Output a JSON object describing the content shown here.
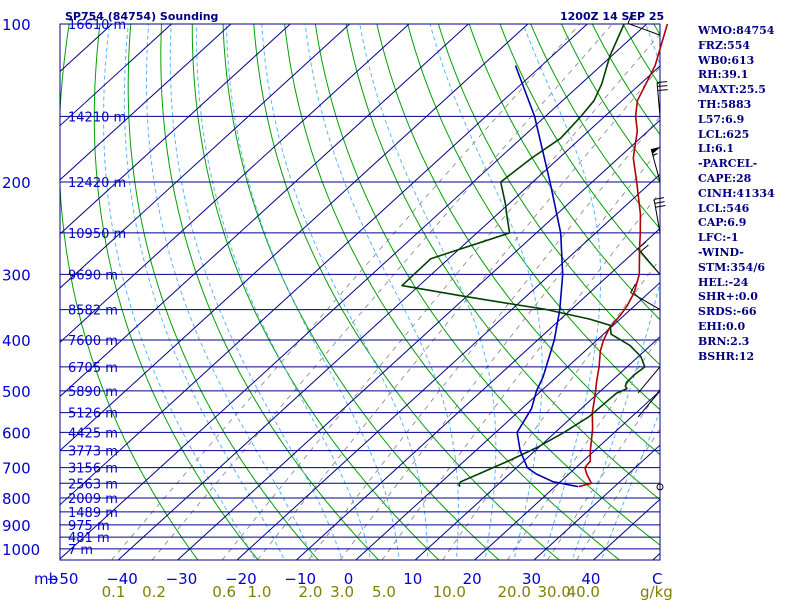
{
  "header": {
    "station": "SP754 (84754) Sounding",
    "datetime": "1200Z 14 SEP 25"
  },
  "indices": [
    "WMO:84754",
    "FRZ:554",
    "WB0:613",
    "RH:39.1",
    "MAXT:25.5",
    "TH:5883",
    "L57:6.9",
    "LCL:625",
    "LI:6.1",
    "-PARCEL-",
    "CAPE:28",
    "CINH:41334",
    "LCL:546",
    "CAP:6.9",
    "LFC:-1",
    "-WIND-",
    "STM:354/6",
    "HEL:-24",
    "SHR+:0.0",
    "SRDS:-66",
    "EHI:0.0",
    "BRN:2.3",
    "BSHR:12"
  ],
  "colors": {
    "isobar": "#00008b",
    "isotherm": "#00008b",
    "dry_adiabat": "#00a000",
    "moist_adiabat": "#5ab4ff",
    "mixing_ratio": "#808080",
    "temperature": "#b00000",
    "dewpoint": "#004000",
    "parcel": "#0000b0",
    "text_blue": "#0000cd",
    "mixing_label": "#808000"
  },
  "chart_data": {
    "type": "line",
    "subtype": "skew-t log-p",
    "xlabel": "",
    "ylabel": "mb",
    "pressure_labels": [
      "100",
      "200",
      "300",
      "400",
      "500",
      "600",
      "700",
      "800",
      "900",
      "1000"
    ],
    "heights": [
      {
        "p": 100,
        "label": "16610 m"
      },
      {
        "p": 150,
        "label": "14210 m"
      },
      {
        "p": 200,
        "label": "12420 m"
      },
      {
        "p": 250,
        "label": "10950 m"
      },
      {
        "p": 300,
        "label": "9690 m"
      },
      {
        "p": 350,
        "label": "8582 m"
      },
      {
        "p": 400,
        "label": "7600 m"
      },
      {
        "p": 450,
        "label": "6705 m"
      },
      {
        "p": 500,
        "label": "5890 m"
      },
      {
        "p": 550,
        "label": "5126 m"
      },
      {
        "p": 600,
        "label": "4425 m"
      },
      {
        "p": 650,
        "label": "3773 m"
      },
      {
        "p": 700,
        "label": "3156 m"
      },
      {
        "p": 750,
        "label": "2563 m"
      },
      {
        "p": 800,
        "label": "2009 m"
      },
      {
        "p": 850,
        "label": "1489 m"
      },
      {
        "p": 900,
        "label": "975 m"
      },
      {
        "p": 950,
        "label": "481 m"
      },
      {
        "p": 1000,
        "label": "7 m"
      }
    ],
    "temp_ticks": [
      -50,
      -40,
      -30,
      -20,
      -10,
      0,
      10,
      20,
      30,
      40
    ],
    "mixing_ratio_labels": [
      {
        "w": 0.1,
        "label": "0.1"
      },
      {
        "w": 0.2,
        "label": "0.2"
      },
      {
        "w": 0.6,
        "label": "0.6"
      },
      {
        "w": 1.0,
        "label": "1.0"
      },
      {
        "w": 2.0,
        "label": "2.0"
      },
      {
        "w": 3.0,
        "label": "3.0"
      },
      {
        "w": 5.0,
        "label": "5.0"
      },
      {
        "w": 10.0,
        "label": "10.0"
      },
      {
        "w": 20.0,
        "label": "20.0"
      },
      {
        "w": 30.0,
        "label": "30.0"
      },
      {
        "w": 40.0,
        "label": "40.0"
      }
    ],
    "mixing_unit": "g/kg",
    "temp_unit": "C",
    "ylim": [
      100,
      1000
    ],
    "series": [
      {
        "kind": "temperature",
        "points": [
          [
            761,
            24.0
          ],
          [
            750,
            25.5
          ],
          [
            720,
            23.0
          ],
          [
            700,
            21.5
          ],
          [
            680,
            21.2
          ],
          [
            650,
            19.3
          ],
          [
            620,
            17.5
          ],
          [
            590,
            15.6
          ],
          [
            550,
            12.6
          ],
          [
            510,
            9.9
          ],
          [
            480,
            7.6
          ],
          [
            450,
            5.3
          ],
          [
            420,
            2.6
          ],
          [
            400,
            1.1
          ],
          [
            380,
            -0.1
          ],
          [
            370,
            -0.4
          ],
          [
            360,
            -0.6
          ],
          [
            345,
            -1.2
          ],
          [
            325,
            -2.5
          ],
          [
            300,
            -5.0
          ],
          [
            270,
            -9.4
          ],
          [
            250,
            -12.5
          ],
          [
            230,
            -16.0
          ],
          [
            200,
            -22.5
          ],
          [
            180,
            -27.5
          ],
          [
            160,
            -31.8
          ],
          [
            150,
            -34.8
          ],
          [
            140,
            -37.4
          ],
          [
            120,
            -40.9
          ],
          [
            100,
            -46.5
          ]
        ]
      },
      {
        "kind": "dewpoint",
        "points": [
          [
            761,
            4.0
          ],
          [
            755,
            3.5
          ],
          [
            745,
            3.2
          ],
          [
            720,
            4.8
          ],
          [
            680,
            7.4
          ],
          [
            640,
            9.8
          ],
          [
            600,
            11.5
          ],
          [
            560,
            12.8
          ],
          [
            520,
            13.0
          ],
          [
            505,
            13.1
          ],
          [
            495,
            14.0
          ],
          [
            490,
            13.3
          ],
          [
            482,
            12.8
          ],
          [
            465,
            12.7
          ],
          [
            450,
            13.0
          ],
          [
            430,
            10.4
          ],
          [
            410,
            6.6
          ],
          [
            390,
            1.3
          ],
          [
            375,
            -0.5
          ],
          [
            365,
            -5.1
          ],
          [
            350,
            -14.1
          ],
          [
            330,
            -30.6
          ],
          [
            315,
            -42.9
          ],
          [
            280,
            -43.0
          ],
          [
            250,
            -34.5
          ],
          [
            235,
            -37.5
          ],
          [
            220,
            -40.6
          ],
          [
            200,
            -45.4
          ],
          [
            180,
            -44.6
          ],
          [
            165,
            -43.4
          ],
          [
            150,
            -44.0
          ],
          [
            140,
            -44.7
          ],
          [
            130,
            -46.5
          ],
          [
            115,
            -50.3
          ],
          [
            100,
            -53.8
          ]
        ]
      },
      {
        "kind": "parcel",
        "points": [
          [
            761,
            23.9
          ],
          [
            745,
            18.8
          ],
          [
            720,
            14.5
          ],
          [
            700,
            11.8
          ],
          [
            650,
            7.5
          ],
          [
            600,
            3.6
          ],
          [
            540,
            1.6
          ],
          [
            500,
            -0.8
          ],
          [
            470,
            -2.3
          ],
          [
            430,
            -5.0
          ],
          [
            400,
            -7.2
          ],
          [
            350,
            -11.9
          ],
          [
            300,
            -17.9
          ],
          [
            250,
            -25.9
          ],
          [
            200,
            -37.1
          ],
          [
            150,
            -51.8
          ],
          [
            120,
            -64.4
          ]
        ]
      }
    ],
    "wind_barbs": [
      {
        "p": 105,
        "dir": 290,
        "spd": 10
      },
      {
        "p": 150,
        "dir": 355,
        "spd": 30
      },
      {
        "p": 200,
        "dir": 345,
        "spd": 55
      },
      {
        "p": 250,
        "dir": 350,
        "spd": 30
      },
      {
        "p": 300,
        "dir": 320,
        "spd": 20
      },
      {
        "p": 350,
        "dir": 300,
        "spd": 10
      },
      {
        "p": 450,
        "dir": 220,
        "spd": 0
      },
      {
        "p": 500,
        "dir": 220,
        "spd": 0
      },
      {
        "p": 762,
        "dir": 0,
        "spd": 0
      }
    ]
  }
}
